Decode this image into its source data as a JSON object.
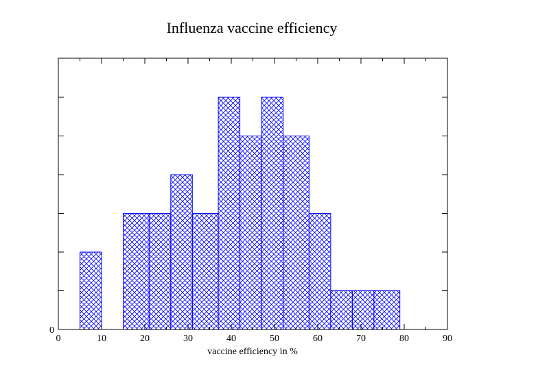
{
  "chart_data": {
    "type": "bar",
    "title": "Influenza vaccine efficiency",
    "xlabel": "vaccine efficiency in %",
    "ylabel": "",
    "xlim": [
      0,
      90
    ],
    "ylim": [
      0,
      6
    ],
    "x_ticks": [
      0,
      10,
      20,
      30,
      40,
      50,
      60,
      70,
      80,
      90
    ],
    "y_tick_labels_shown": [
      "0"
    ],
    "bins": [
      {
        "start": 5,
        "end": 10,
        "value": 2
      },
      {
        "start": 10,
        "end": 15,
        "value": 0
      },
      {
        "start": 15,
        "end": 21,
        "value": 3
      },
      {
        "start": 21,
        "end": 26,
        "value": 3
      },
      {
        "start": 26,
        "end": 31,
        "value": 4
      },
      {
        "start": 31,
        "end": 37,
        "value": 3
      },
      {
        "start": 37,
        "end": 42,
        "value": 6
      },
      {
        "start": 42,
        "end": 47,
        "value": 5
      },
      {
        "start": 47,
        "end": 52,
        "value": 6
      },
      {
        "start": 52,
        "end": 58,
        "value": 5
      },
      {
        "start": 58,
        "end": 63,
        "value": 3
      },
      {
        "start": 63,
        "end": 68,
        "value": 1
      },
      {
        "start": 68,
        "end": 73,
        "value": 1
      },
      {
        "start": 73,
        "end": 79,
        "value": 1
      }
    ],
    "bar_color": "#0000ff",
    "fill_pattern": "crosshatch",
    "grid": false,
    "legend": "none"
  }
}
